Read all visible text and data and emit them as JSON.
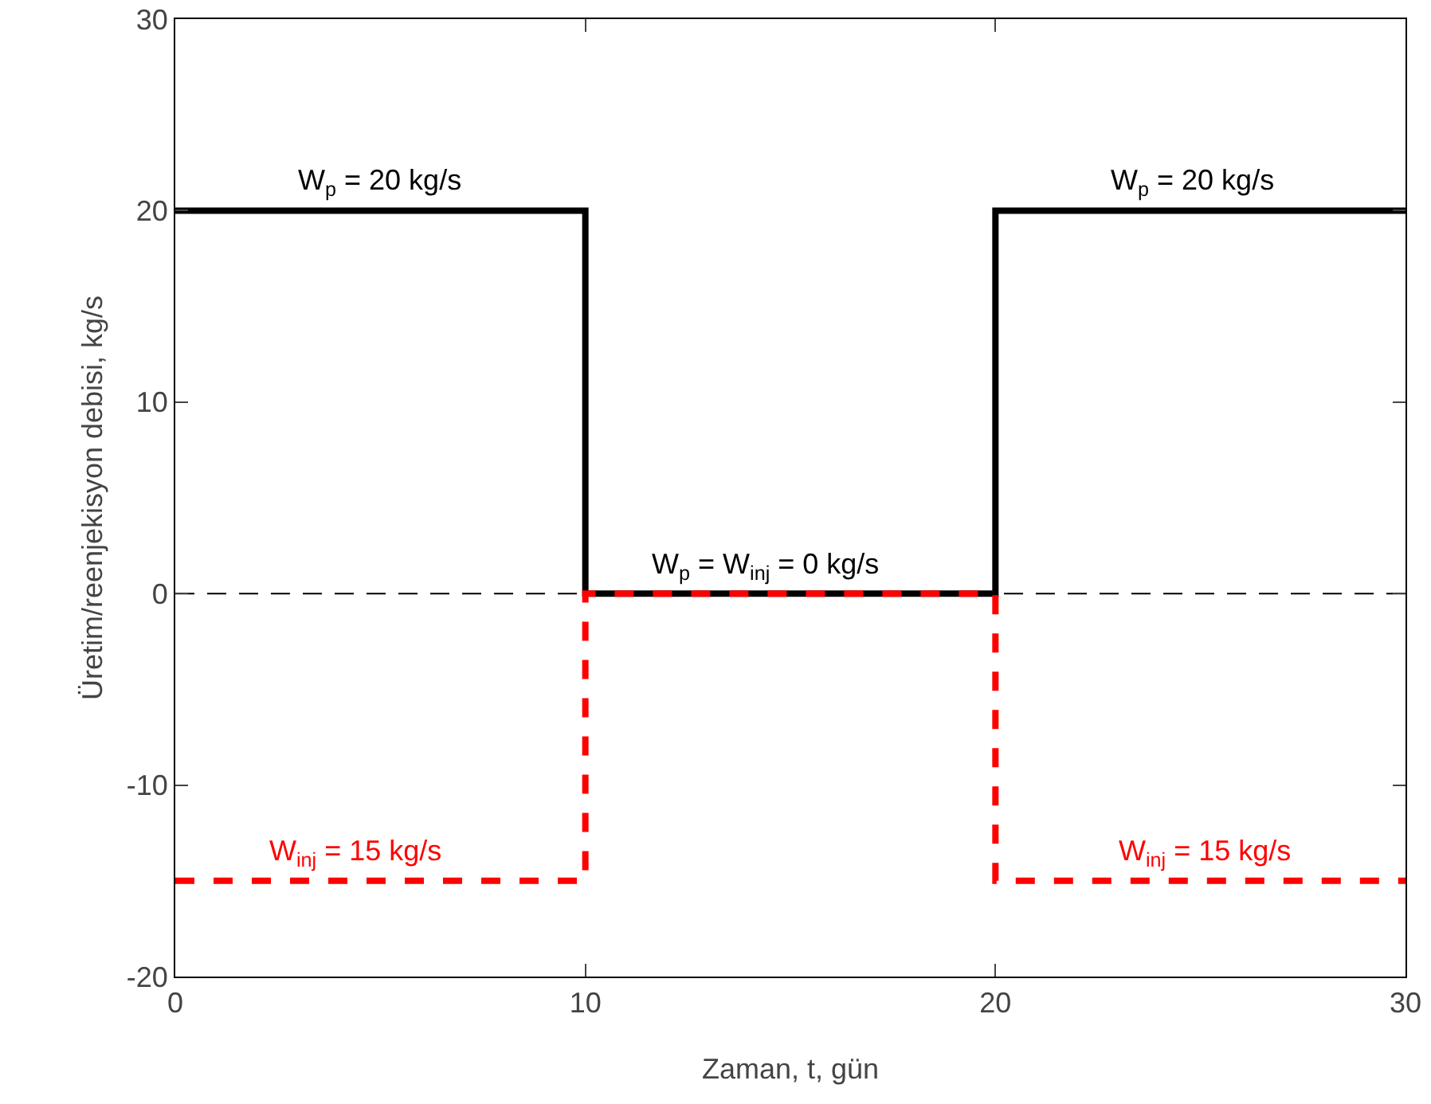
{
  "chart_data": {
    "type": "line",
    "xlabel": "Zaman, t, gün",
    "ylabel": "Üretim/reenjekisyon debisi, kg/s",
    "xlim": [
      0,
      30
    ],
    "xticks": [
      0,
      10,
      20,
      30
    ],
    "ylim": [
      -20,
      30
    ],
    "yticks": [
      -20,
      -10,
      0,
      10,
      20,
      30
    ],
    "grid": false,
    "marker": "none",
    "series": [
      {
        "color": "#000000",
        "line_style": "solid",
        "x": [
          0,
          10,
          10,
          20,
          20,
          30
        ],
        "values": [
          20,
          20,
          0,
          0,
          20,
          20
        ]
      },
      {
        "color": "#ff0000",
        "line_style": "dashed",
        "x": [
          0,
          10,
          10,
          20,
          20,
          30
        ],
        "values": [
          -15,
          -15,
          0,
          0,
          -15,
          -15
        ]
      }
    ],
    "ref_lines": [
      {
        "axis": "y",
        "value": 0,
        "color": "#000000",
        "line_style": "dashed"
      }
    ],
    "annotations": [
      {
        "text": "W$_{p}$ = 20 kg/s",
        "x": 5,
        "y": 20
      },
      {
        "text": "W$_{p}$ = 20 kg/s",
        "x": 24.8,
        "y": 20
      },
      {
        "text": "W$_{p}$ = W$_{inj}$ = 0 kg/s",
        "x": 14.4,
        "y": 0
      },
      {
        "text": "W$_{inj}$ = 15 kg/s",
        "x": 4.4,
        "y": -15
      },
      {
        "text": "W$_{inj}$ = 15 kg/s",
        "x": 25.1,
        "y": -15
      }
    ]
  }
}
